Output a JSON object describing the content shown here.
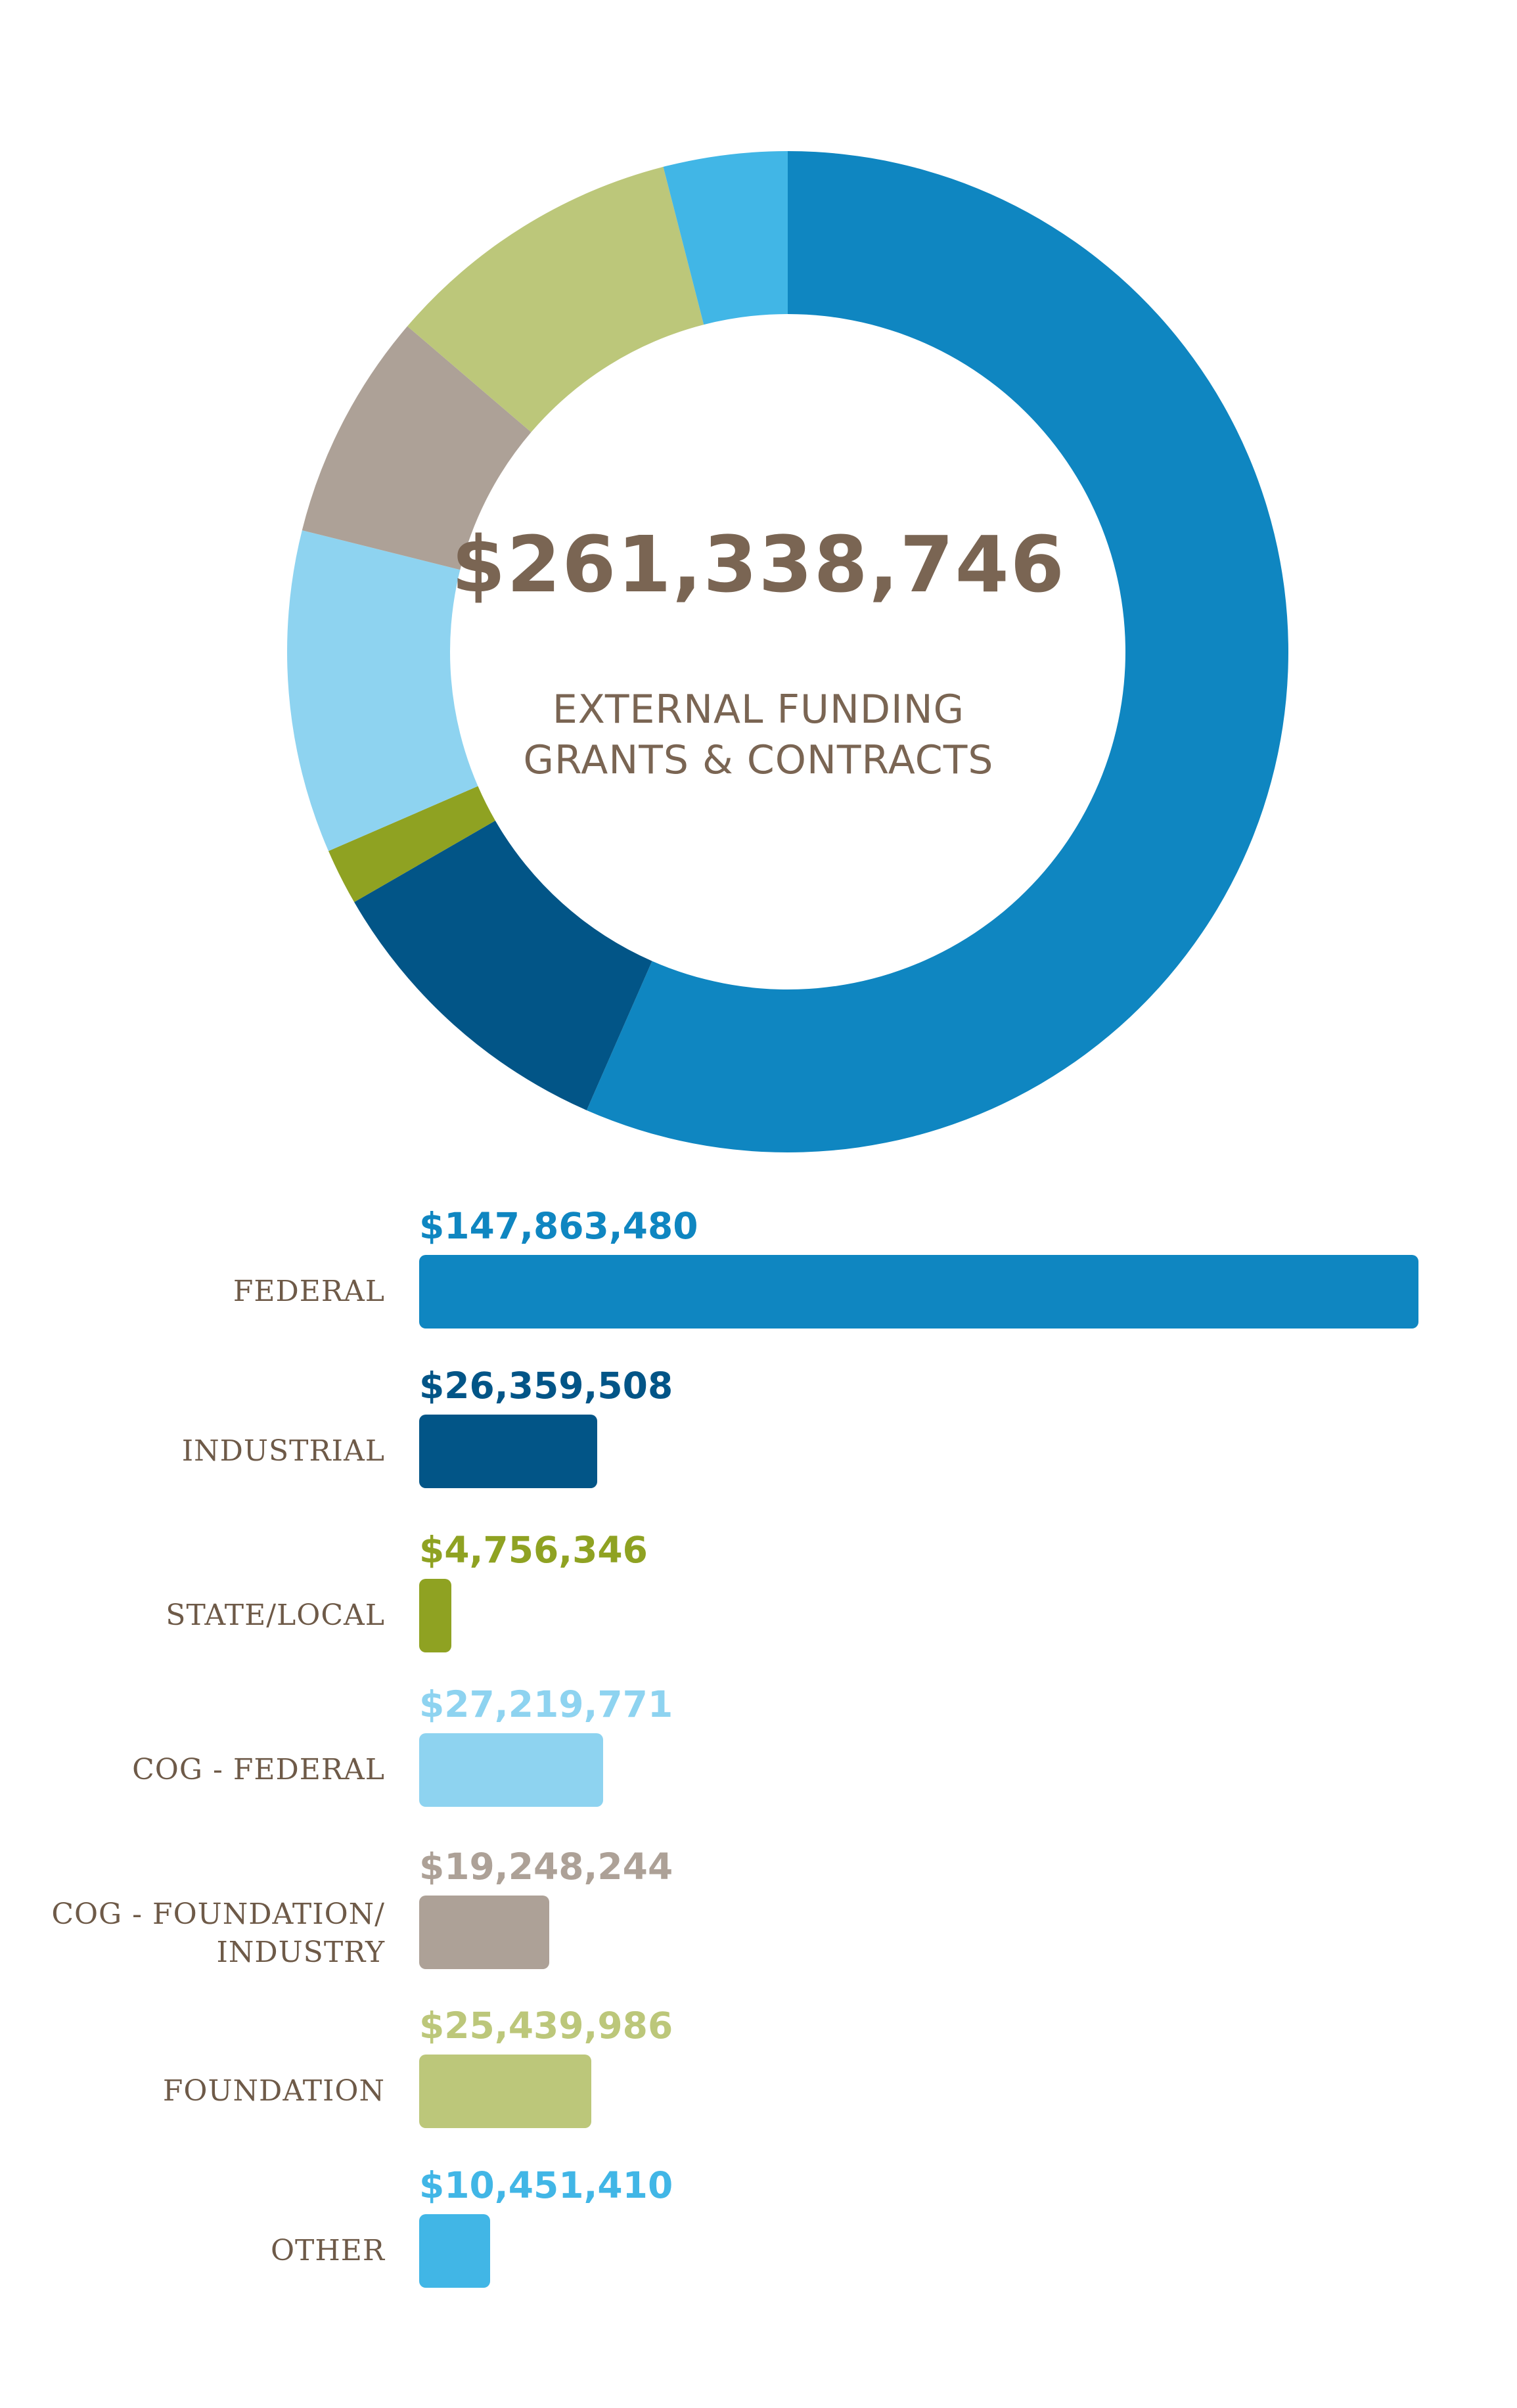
{
  "center": {
    "total": "$261,338,746",
    "subtitle_line1": "EXTERNAL FUNDING",
    "subtitle_line2": "GRANTS & CONTRACTS"
  },
  "chart_data": [
    {
      "type": "pie",
      "title": "",
      "categories": [
        "FEDERAL",
        "INDUSTRIAL",
        "STATE/LOCAL",
        "COG - FEDERAL",
        "COG - FOUNDATION/ INDUSTRY",
        "FOUNDATION",
        "OTHER"
      ],
      "values": [
        147863480,
        26359508,
        4756346,
        27219771,
        19248244,
        25439986,
        10451410
      ],
      "colors": [
        "#0f86c1",
        "#025587",
        "#8fa222",
        "#8ed3f0",
        "#ada197",
        "#bcc77a",
        "#41b6e6"
      ]
    },
    {
      "type": "bar",
      "orientation": "horizontal",
      "categories": [
        "FEDERAL",
        "INDUSTRIAL",
        "STATE/LOCAL",
        "COG - FEDERAL",
        "COG - FOUNDATION/ INDUSTRY",
        "FOUNDATION",
        "OTHER"
      ],
      "label_lines": [
        [
          "FEDERAL"
        ],
        [
          "INDUSTRIAL"
        ],
        [
          "STATE/LOCAL"
        ],
        [
          "COG - FEDERAL"
        ],
        [
          "COG - FOUNDATION/",
          "INDUSTRY"
        ],
        [
          "FOUNDATION"
        ],
        [
          "OTHER"
        ]
      ],
      "values": [
        147863480,
        26359508,
        4756346,
        27219771,
        19248244,
        25439986,
        10451410
      ],
      "value_labels": [
        "$147,863,480",
        "$26,359,508",
        "$4,756,346",
        "$27,219,771",
        "$19,248,244",
        "$25,439,986",
        "$10,451,410"
      ],
      "colors": [
        "#0f86c1",
        "#025587",
        "#8fa222",
        "#8ed3f0",
        "#ada197",
        "#bcc77a",
        "#41b6e6"
      ],
      "grid": false
    }
  ]
}
